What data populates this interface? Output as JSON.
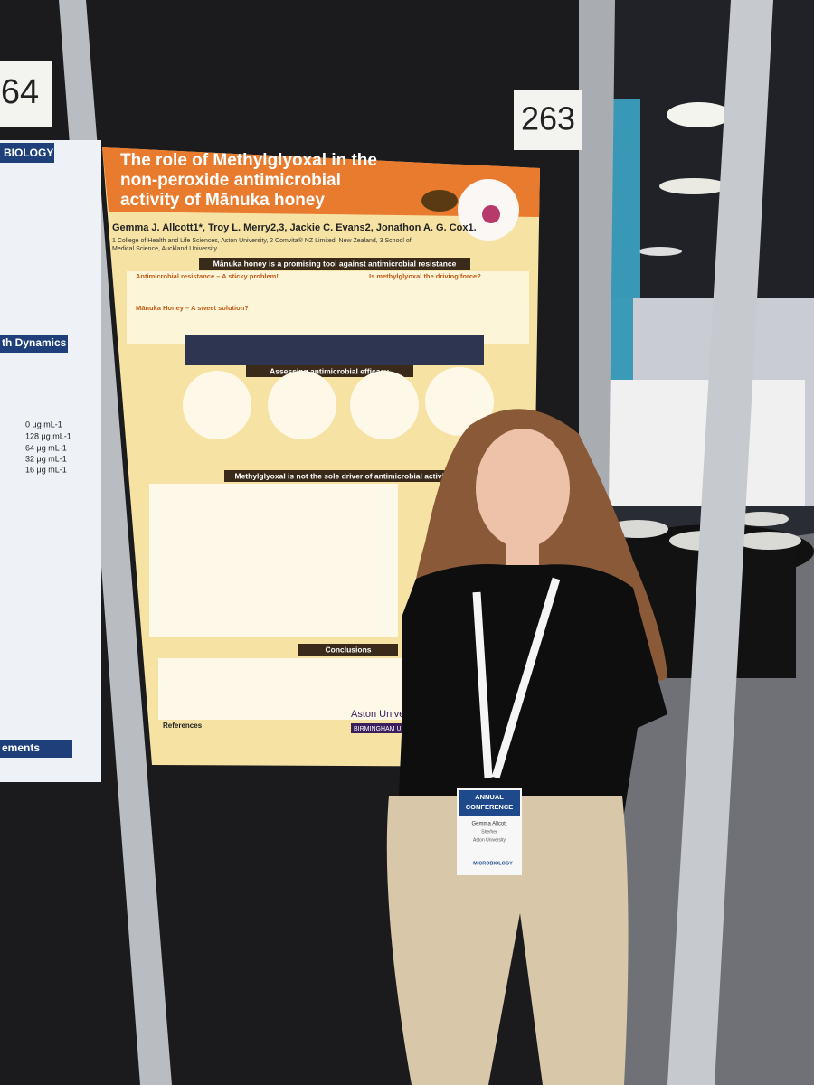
{
  "board_numbers": [
    "64",
    "263"
  ],
  "left_poster": {
    "header": "BIOLOGY",
    "section": "th Dynamics",
    "legend": [
      "0 μg mL-1",
      "128 μg mL-1",
      "64 μg mL-1",
      "32 μg mL-1",
      "16 μg mL-1"
    ],
    "footer": "ements"
  },
  "poster": {
    "title_lines": [
      "The role of Methylglyoxal in the",
      "non-peroxide antimicrobial",
      "activity of Mānuka honey"
    ],
    "authors": "Gemma J. Allcott1*, Troy L. Merry2,3, Jackie C. Evans2, Jonathon A. G. Cox1.",
    "affiliations": [
      "1 College of Health and Life Sciences, Aston University, 2 Comvita® NZ Limited, New Zealand, 3 School of",
      "Medical Science, Auckland University."
    ],
    "banner": "Mānuka honey is a promising tool against antimicrobial resistance",
    "intro_headings": [
      "Antimicrobial resistance – A sticky problem!",
      "Mānuka Honey – A sweet solution?",
      "Is methylglyoxal the driving force?"
    ],
    "section_assess": "Assessing antimicrobial efficacy",
    "section_mgo": "Methylglyoxal is not the sole driver of antimicrobial activity",
    "section_conclusions": "Conclusions",
    "references": "References",
    "logo": [
      "Aston University",
      "BIRMINGHAM UK"
    ]
  },
  "badge": {
    "event": [
      "ANNUAL",
      "CONFERENCE"
    ],
    "name": "Gemma Allcott",
    "pronouns": "She/her",
    "institution": "Aston University",
    "society": "MICROBIOLOGY"
  }
}
